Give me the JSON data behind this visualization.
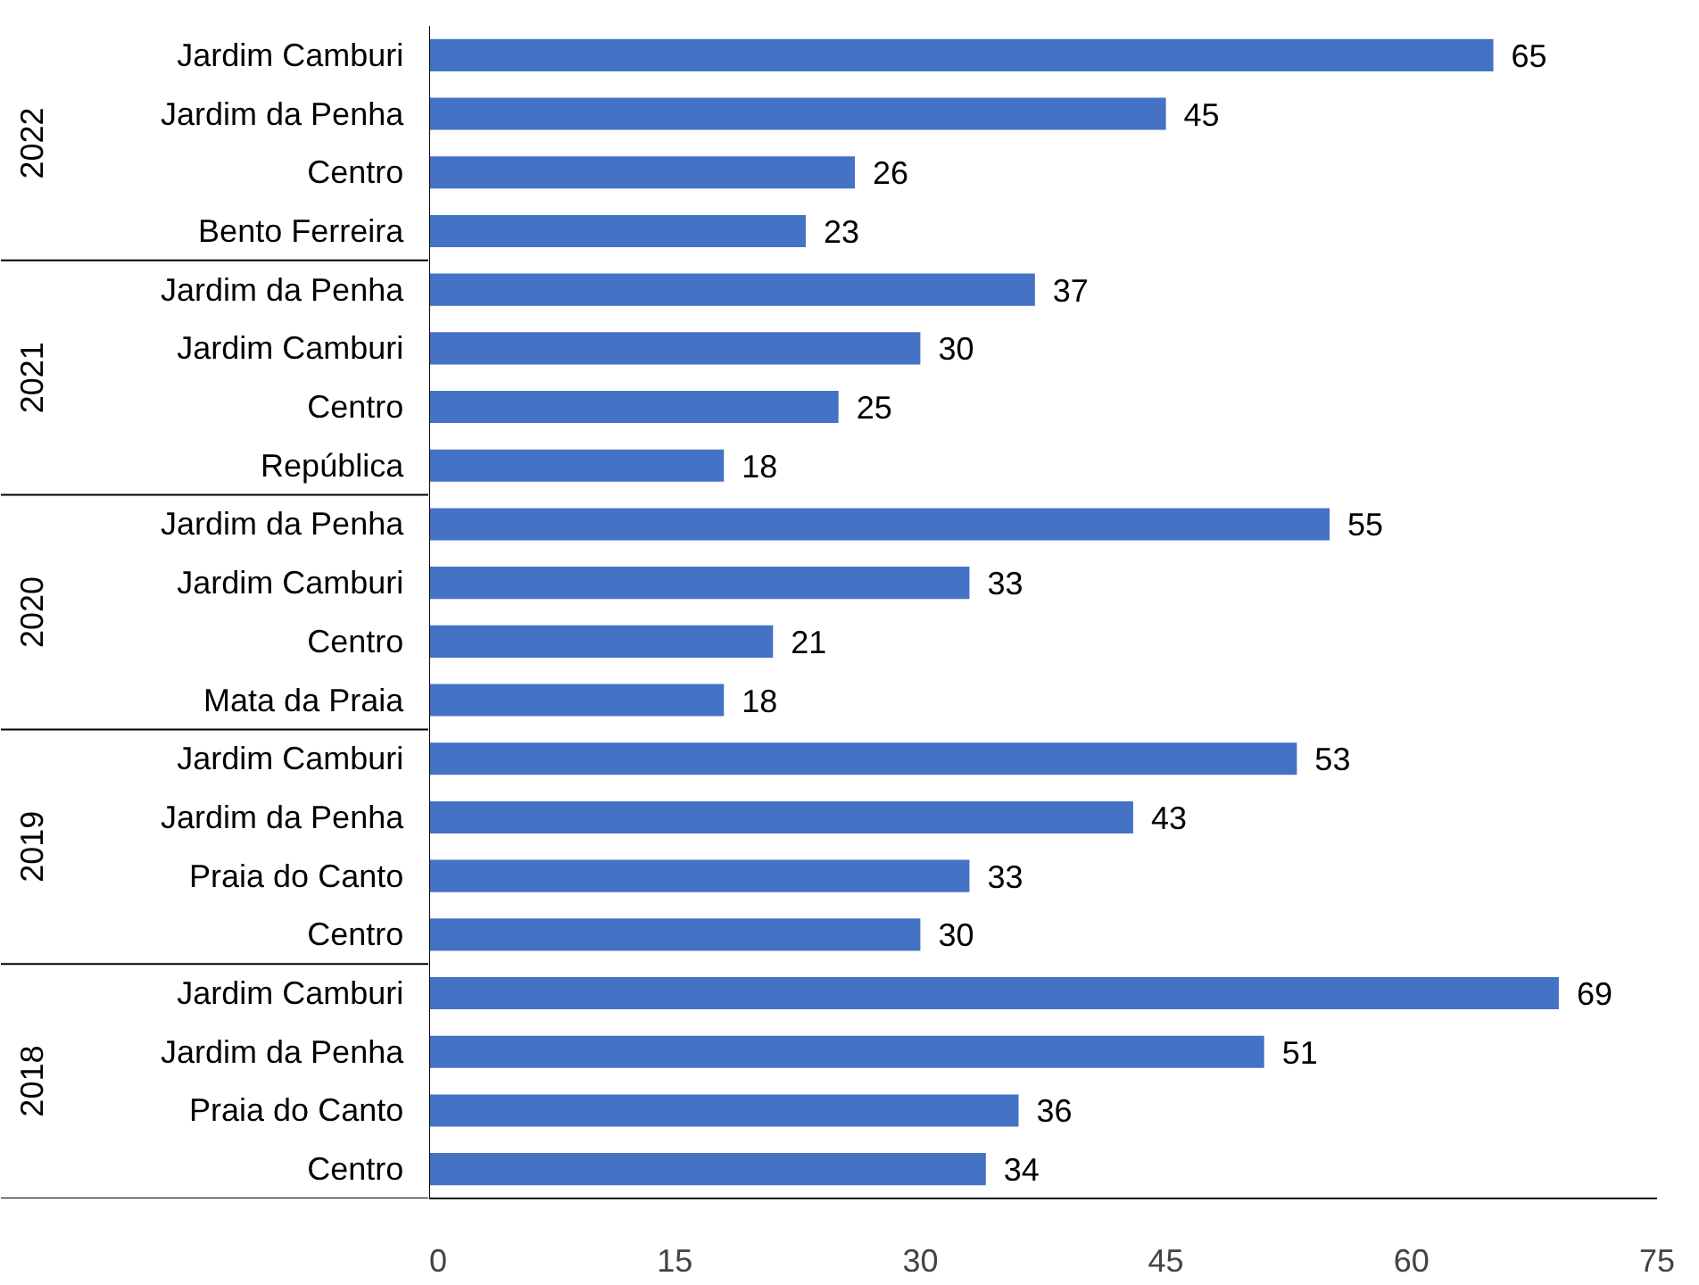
{
  "chart_data": {
    "type": "bar",
    "orientation": "horizontal",
    "categories": [
      "Jardim Camburi",
      "Jardim da Penha",
      "Centro",
      "Bento Ferreira",
      "Jardim da Penha",
      "Jardim Camburi",
      "Centro",
      "República",
      "Jardim da Penha",
      "Jardim Camburi",
      "Centro",
      "Mata da Praia",
      "Jardim Camburi",
      "Jardim da Penha",
      "Praia do Canto",
      "Centro",
      "Jardim Camburi",
      "Jardim da Penha",
      "Praia do Canto",
      "Centro"
    ],
    "values": [
      65,
      45,
      26,
      23,
      37,
      30,
      25,
      18,
      55,
      33,
      21,
      18,
      53,
      43,
      33,
      30,
      69,
      51,
      36,
      34
    ],
    "color": "#4472c4",
    "xlim": [
      0,
      75
    ],
    "xticks": [
      0,
      15,
      30,
      45,
      60,
      75
    ],
    "data_labels": true,
    "annotations": [
      "2022",
      "2021",
      "2020",
      "2019",
      "2018"
    ]
  }
}
